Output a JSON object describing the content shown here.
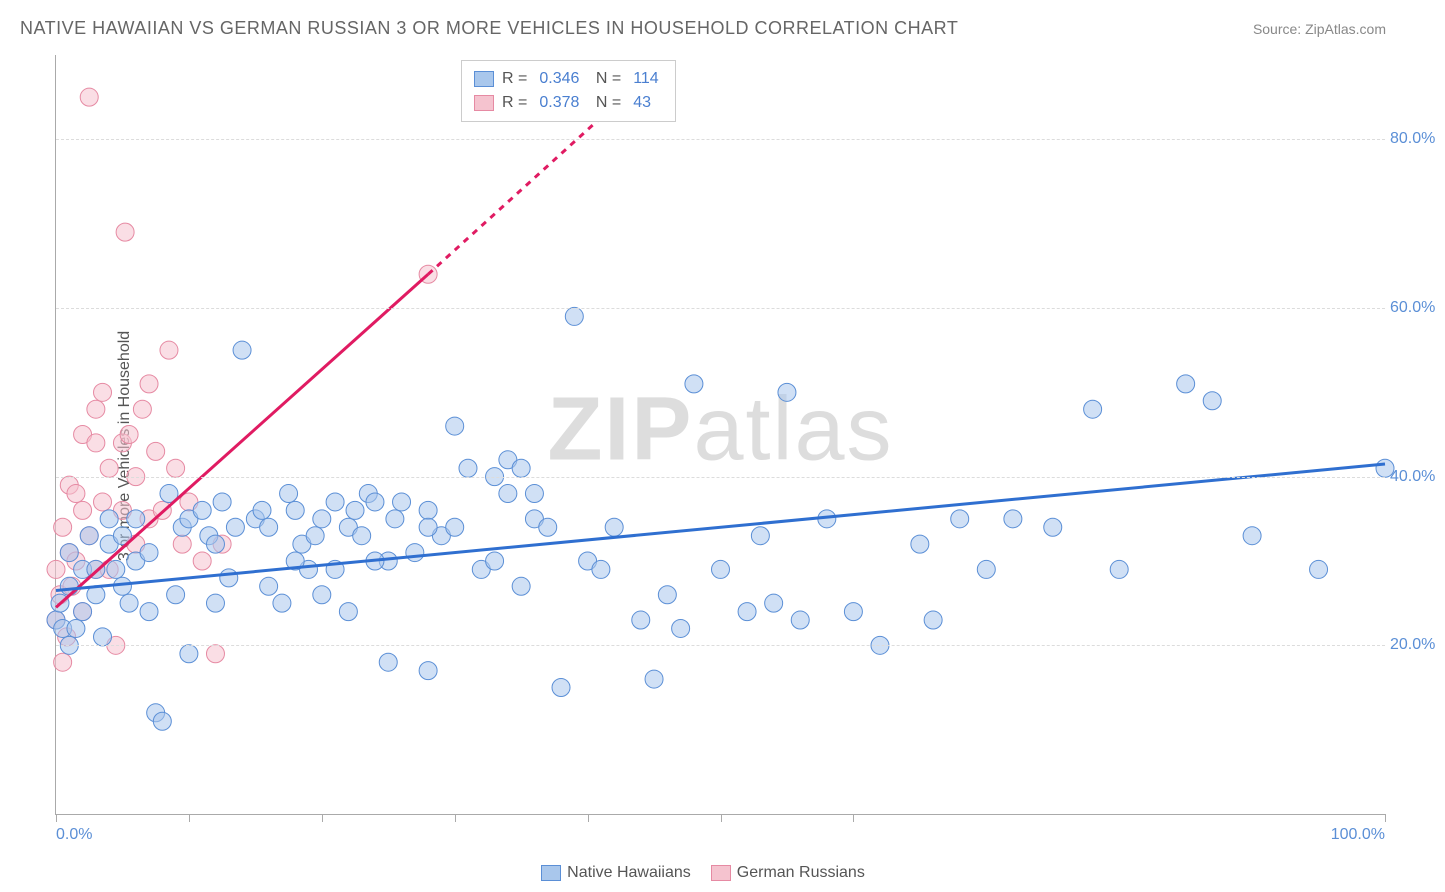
{
  "title": "NATIVE HAWAIIAN VS GERMAN RUSSIAN 3 OR MORE VEHICLES IN HOUSEHOLD CORRELATION CHART",
  "source_label": "Source: ZipAtlas.com",
  "y_axis_label": "3 or more Vehicles in Household",
  "watermark": {
    "bold": "ZIP",
    "rest": "atlas"
  },
  "colors": {
    "series_a_fill": "#a9c7ec",
    "series_a_stroke": "#5b8fd6",
    "series_b_fill": "#f5c3cf",
    "series_b_stroke": "#e68aa3",
    "trend_a": "#2f6fd0",
    "trend_b": "#e01b62",
    "grid": "#dcdcdc",
    "axis": "#aaaaaa",
    "tick_text": "#5b8fd6",
    "label_text": "#555555"
  },
  "chart": {
    "type": "scatter",
    "xlim": [
      0,
      100
    ],
    "ylim": [
      0,
      90
    ],
    "y_ticks": [
      20,
      40,
      60,
      80
    ],
    "y_tick_labels": [
      "20.0%",
      "40.0%",
      "60.0%",
      "80.0%"
    ],
    "x_ticks": [
      0,
      10,
      20,
      30,
      40,
      50,
      60,
      100
    ],
    "x_tick_labels_min": "0.0%",
    "x_tick_labels_max": "100.0%",
    "marker_radius": 9,
    "marker_opacity": 0.55,
    "trend_line_width": 3
  },
  "stats": {
    "series_a": {
      "R": "0.346",
      "N": "114"
    },
    "series_b": {
      "R": "0.378",
      "N": "43"
    }
  },
  "legend": {
    "series_a": "Native Hawaiians",
    "series_b": "German Russians"
  },
  "trend_lines": {
    "a": {
      "x1": 0,
      "y1": 26.5,
      "x2": 100,
      "y2": 41.5
    },
    "b_solid": {
      "x1": 0,
      "y1": 24.5,
      "x2": 28,
      "y2": 64
    },
    "b_dashed": {
      "x1": 28,
      "y1": 64,
      "x2": 42,
      "y2": 84
    }
  },
  "series_a_points": [
    [
      0,
      23
    ],
    [
      0.5,
      22
    ],
    [
      0.3,
      25
    ],
    [
      1,
      27
    ],
    [
      1,
      31
    ],
    [
      1.5,
      22
    ],
    [
      1,
      20
    ],
    [
      2,
      29
    ],
    [
      2,
      24
    ],
    [
      2.5,
      33
    ],
    [
      3,
      29
    ],
    [
      3,
      26
    ],
    [
      3.5,
      21
    ],
    [
      4,
      35
    ],
    [
      4,
      32
    ],
    [
      4.5,
      29
    ],
    [
      5,
      27
    ],
    [
      5,
      33
    ],
    [
      5.5,
      25
    ],
    [
      6,
      35
    ],
    [
      6,
      30
    ],
    [
      7,
      24
    ],
    [
      7,
      31
    ],
    [
      7.5,
      12
    ],
    [
      8,
      11
    ],
    [
      8.5,
      38
    ],
    [
      9,
      26
    ],
    [
      9.5,
      34
    ],
    [
      10,
      35
    ],
    [
      10,
      19
    ],
    [
      11,
      36
    ],
    [
      11.5,
      33
    ],
    [
      12,
      25
    ],
    [
      12,
      32
    ],
    [
      12.5,
      37
    ],
    [
      13,
      28
    ],
    [
      13.5,
      34
    ],
    [
      14,
      55
    ],
    [
      15,
      35
    ],
    [
      15.5,
      36
    ],
    [
      16,
      27
    ],
    [
      16,
      34
    ],
    [
      17,
      25
    ],
    [
      17.5,
      38
    ],
    [
      18,
      36
    ],
    [
      18.5,
      32
    ],
    [
      19,
      29
    ],
    [
      19.5,
      33
    ],
    [
      20,
      35
    ],
    [
      21,
      37
    ],
    [
      21,
      29
    ],
    [
      22,
      34
    ],
    [
      22.5,
      36
    ],
    [
      23,
      33
    ],
    [
      23.5,
      38
    ],
    [
      24,
      37
    ],
    [
      25,
      30
    ],
    [
      25,
      18
    ],
    [
      25.5,
      35
    ],
    [
      27,
      31
    ],
    [
      28,
      17
    ],
    [
      28,
      36
    ],
    [
      29,
      33
    ],
    [
      30,
      34
    ],
    [
      30,
      46
    ],
    [
      31,
      41
    ],
    [
      32,
      29
    ],
    [
      33,
      30
    ],
    [
      34,
      38
    ],
    [
      35,
      27
    ],
    [
      36,
      35
    ],
    [
      37,
      34
    ],
    [
      38,
      15
    ],
    [
      39,
      59
    ],
    [
      40,
      30
    ],
    [
      41,
      29
    ],
    [
      42,
      34
    ],
    [
      44,
      23
    ],
    [
      45,
      16
    ],
    [
      46,
      26
    ],
    [
      47,
      22
    ],
    [
      48,
      51
    ],
    [
      50,
      29
    ],
    [
      52,
      24
    ],
    [
      53,
      33
    ],
    [
      54,
      25
    ],
    [
      55,
      50
    ],
    [
      56,
      23
    ],
    [
      58,
      35
    ],
    [
      60,
      24
    ],
    [
      62,
      20
    ],
    [
      65,
      32
    ],
    [
      66,
      23
    ],
    [
      68,
      35
    ],
    [
      70,
      29
    ],
    [
      72,
      35
    ],
    [
      75,
      34
    ],
    [
      78,
      48
    ],
    [
      80,
      29
    ],
    [
      85,
      51
    ],
    [
      87,
      49
    ],
    [
      90,
      33
    ],
    [
      95,
      29
    ],
    [
      100,
      41
    ],
    [
      34,
      42
    ],
    [
      36,
      38
    ],
    [
      18,
      30
    ],
    [
      20,
      26
    ],
    [
      22,
      24
    ],
    [
      24,
      30
    ],
    [
      26,
      37
    ],
    [
      28,
      34
    ],
    [
      33,
      40
    ],
    [
      35,
      41
    ]
  ],
  "series_b_points": [
    [
      0,
      23
    ],
    [
      0,
      29
    ],
    [
      0.3,
      26
    ],
    [
      0.5,
      34
    ],
    [
      0.5,
      18
    ],
    [
      0.8,
      21
    ],
    [
      1,
      31
    ],
    [
      1,
      39
    ],
    [
      1.2,
      27
    ],
    [
      1.5,
      38
    ],
    [
      1.5,
      30
    ],
    [
      2,
      24
    ],
    [
      2,
      45
    ],
    [
      2,
      36
    ],
    [
      2.5,
      33
    ],
    [
      2.5,
      85
    ],
    [
      3,
      44
    ],
    [
      3,
      48
    ],
    [
      3,
      29
    ],
    [
      3.5,
      37
    ],
    [
      3.5,
      50
    ],
    [
      4,
      41
    ],
    [
      4,
      29
    ],
    [
      4.5,
      20
    ],
    [
      5,
      44
    ],
    [
      5,
      36
    ],
    [
      5.2,
      69
    ],
    [
      5.5,
      45
    ],
    [
      6,
      32
    ],
    [
      6,
      40
    ],
    [
      6.5,
      48
    ],
    [
      7,
      35
    ],
    [
      7,
      51
    ],
    [
      7.5,
      43
    ],
    [
      8,
      36
    ],
    [
      8.5,
      55
    ],
    [
      9,
      41
    ],
    [
      9.5,
      32
    ],
    [
      10,
      37
    ],
    [
      11,
      30
    ],
    [
      12,
      19
    ],
    [
      12.5,
      32
    ],
    [
      28,
      64
    ]
  ]
}
